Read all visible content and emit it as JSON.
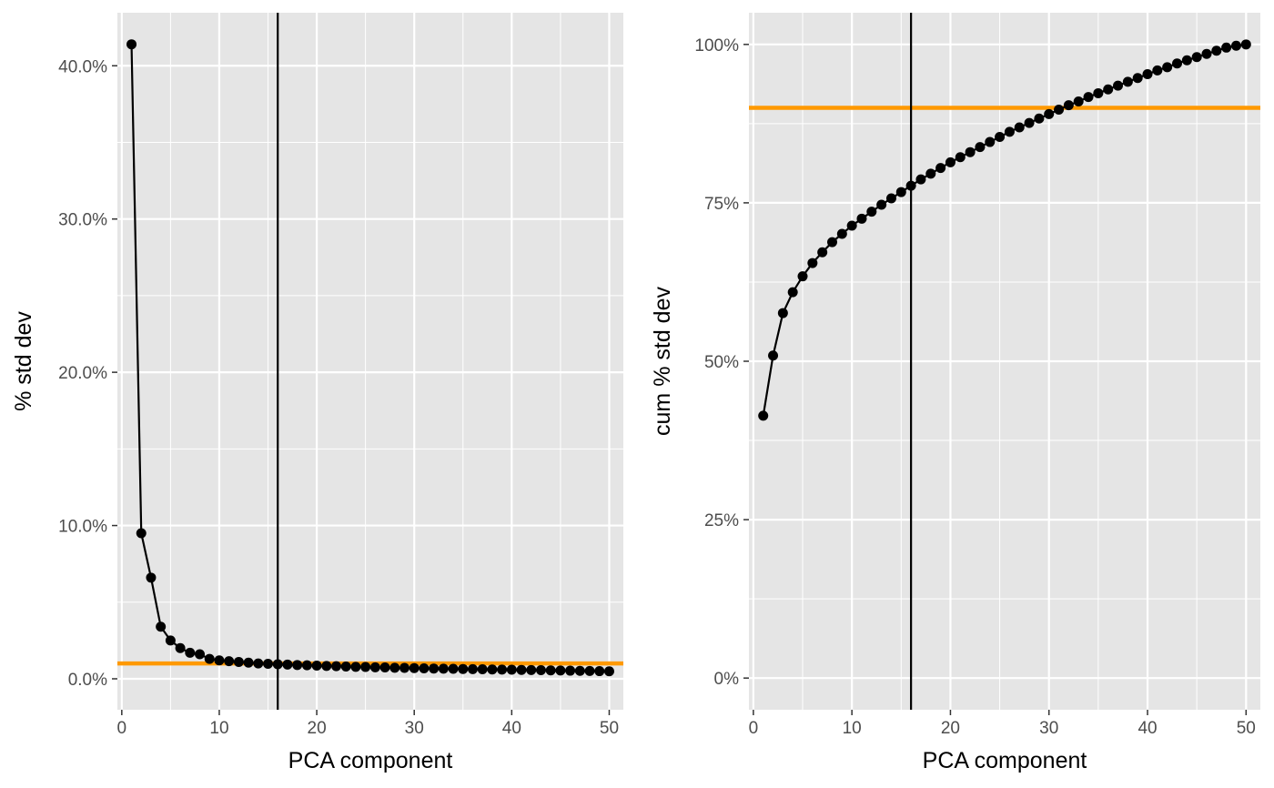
{
  "colors": {
    "panel_background": "#e5e5e5",
    "gridline": "#ffffff",
    "point_line": "#000000",
    "threshold_line": "#ff9900",
    "vline": "#000000"
  },
  "chart_data": [
    {
      "type": "line",
      "title": "",
      "xlabel": "PCA component",
      "ylabel": "% std dev",
      "xlim": [
        -0.45,
        51.45
      ],
      "ylim": [
        -0.0202,
        0.4346
      ],
      "x_ticks": [
        0,
        10,
        20,
        30,
        40,
        50
      ],
      "x_tick_labels": [
        "0",
        "10",
        "20",
        "30",
        "40",
        "50"
      ],
      "y_ticks": [
        0.0,
        0.1,
        0.2,
        0.3,
        0.4
      ],
      "y_tick_labels": [
        "0.0%",
        "10.0%",
        "20.0%",
        "30.0%",
        "40.0%"
      ],
      "grid": true,
      "markers": true,
      "x": [
        1,
        2,
        3,
        4,
        5,
        6,
        7,
        8,
        9,
        10,
        11,
        12,
        13,
        14,
        15,
        16,
        17,
        18,
        19,
        20,
        21,
        22,
        23,
        24,
        25,
        26,
        27,
        28,
        29,
        30,
        31,
        32,
        33,
        34,
        35,
        36,
        37,
        38,
        39,
        40,
        41,
        42,
        43,
        44,
        45,
        46,
        47,
        48,
        49,
        50
      ],
      "series": [
        {
          "values": [
            0.414,
            0.095,
            0.066,
            0.034,
            0.025,
            0.02,
            0.017,
            0.016,
            0.013,
            0.012,
            0.0115,
            0.011,
            0.0105,
            0.01,
            0.0098,
            0.0095,
            0.0093,
            0.009,
            0.0088,
            0.0086,
            0.0084,
            0.0082,
            0.008,
            0.0078,
            0.0077,
            0.0075,
            0.0074,
            0.0072,
            0.0071,
            0.007,
            0.0068,
            0.0067,
            0.0066,
            0.0065,
            0.0064,
            0.0063,
            0.0062,
            0.0061,
            0.006,
            0.0059,
            0.0058,
            0.0057,
            0.0056,
            0.0055,
            0.0054,
            0.0053,
            0.0052,
            0.0051,
            0.005,
            0.0049
          ]
        }
      ],
      "hline": 0.01,
      "vline": 16
    },
    {
      "type": "line",
      "title": "",
      "xlabel": "PCA component",
      "ylabel": "cum % std dev",
      "xlim": [
        -0.45,
        51.45
      ],
      "ylim": [
        -0.05,
        1.05
      ],
      "x_ticks": [
        0,
        10,
        20,
        30,
        40,
        50
      ],
      "x_tick_labels": [
        "0",
        "10",
        "20",
        "30",
        "40",
        "50"
      ],
      "y_ticks": [
        0,
        0.25,
        0.5,
        0.75,
        1.0
      ],
      "y_tick_labels": [
        "0%",
        "25%",
        "50%",
        "75%",
        "100%"
      ],
      "grid": true,
      "markers": true,
      "x": [
        1,
        2,
        3,
        4,
        5,
        6,
        7,
        8,
        9,
        10,
        11,
        12,
        13,
        14,
        15,
        16,
        17,
        18,
        19,
        20,
        21,
        22,
        23,
        24,
        25,
        26,
        27,
        28,
        29,
        30,
        31,
        32,
        33,
        34,
        35,
        36,
        37,
        38,
        39,
        40,
        41,
        42,
        43,
        44,
        45,
        46,
        47,
        48,
        49,
        50
      ],
      "series": [
        {
          "values": [
            0.414,
            0.509,
            0.576,
            0.609,
            0.634,
            0.655,
            0.672,
            0.688,
            0.701,
            0.714,
            0.725,
            0.736,
            0.747,
            0.757,
            0.767,
            0.777,
            0.787,
            0.796,
            0.805,
            0.814,
            0.822,
            0.83,
            0.838,
            0.846,
            0.854,
            0.862,
            0.869,
            0.876,
            0.883,
            0.89,
            0.897,
            0.904,
            0.91,
            0.917,
            0.923,
            0.929,
            0.935,
            0.941,
            0.947,
            0.953,
            0.959,
            0.964,
            0.97,
            0.975,
            0.98,
            0.985,
            0.99,
            0.995,
            0.998,
            1.0
          ]
        }
      ],
      "hline": 0.9,
      "vline": 16
    }
  ]
}
